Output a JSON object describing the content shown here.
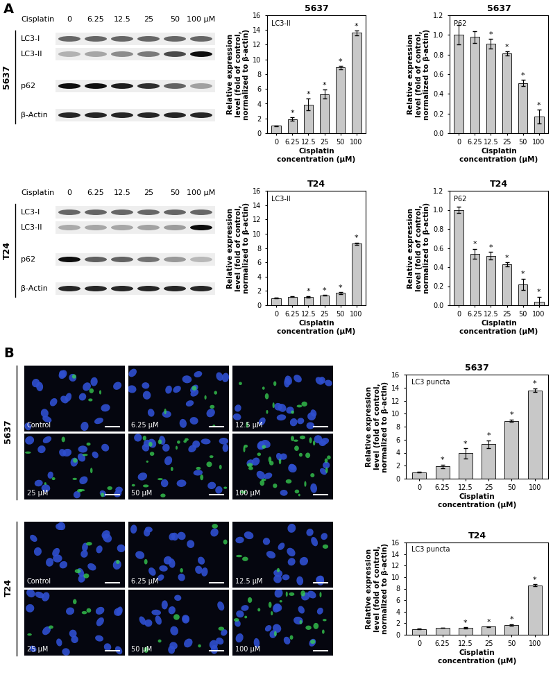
{
  "panel_labels": [
    "A",
    "B"
  ],
  "blots": [
    {
      "cell_line": "5637",
      "treatment": "Cisplatin",
      "lanes": [
        "0",
        "6.25",
        "12.5",
        "25",
        "50",
        "100 μM"
      ],
      "rows": [
        "LC3-I",
        "LC3-II",
        "p62",
        "β-Actin"
      ]
    },
    {
      "cell_line": "T24",
      "treatment": "Cisplatin",
      "lanes": [
        "0",
        "6.25",
        "12.5",
        "25",
        "50",
        "100 μM"
      ],
      "rows": [
        "LC3-I",
        "LC3-II",
        "p62",
        "β-Actin"
      ]
    }
  ],
  "micrographs": [
    {
      "cell_line": "5637",
      "labels": [
        "Control",
        "6.25 μM",
        "12.5 μM",
        "25 μM",
        "50 μM",
        "100 μM"
      ]
    },
    {
      "cell_line": "T24",
      "labels": [
        "Control",
        "6.25 μM",
        "12.5 μM",
        "25 μM",
        "50 μM",
        "100 μM"
      ]
    }
  ],
  "chart_data": [
    {
      "type": "bar",
      "title": "5637",
      "annotation": "LC3-II",
      "categories": [
        "0",
        "6.25",
        "12.5",
        "25",
        "50",
        "100"
      ],
      "values": [
        1.0,
        1.9,
        3.9,
        5.3,
        8.9,
        13.6
      ],
      "errors": [
        0.05,
        0.25,
        0.8,
        0.6,
        0.2,
        0.3
      ],
      "significance": [
        null,
        "*",
        "*",
        "*",
        "*",
        "*"
      ],
      "xlabel": "Cisplatin\nconcentration (μM)",
      "ylabel": "Relative expression\nlevel (fold of control,\nnormalized to β-actin)",
      "ylim": [
        0,
        16
      ],
      "yticks": [
        0,
        2,
        4,
        6,
        8,
        10,
        12,
        14,
        16
      ],
      "color": "#c8c8c8"
    },
    {
      "type": "bar",
      "title": "5637",
      "annotation": "P62",
      "categories": [
        "0",
        "6.25",
        "12.5",
        "25",
        "50",
        "100"
      ],
      "values": [
        1.0,
        0.98,
        0.91,
        0.81,
        0.51,
        0.17
      ],
      "errors": [
        0.1,
        0.06,
        0.05,
        0.02,
        0.03,
        0.07
      ],
      "significance": [
        null,
        null,
        "*",
        "*",
        "*",
        "*"
      ],
      "xlabel": "Cisplatin\nconcentration (μM)",
      "ylabel": "Relative expression\nlevel (fold of control,\nnormalized to β-actin)",
      "ylim": [
        0.0,
        1.2
      ],
      "yticks": [
        0.0,
        0.2,
        0.4,
        0.6,
        0.8,
        1.0,
        1.2
      ],
      "color": "#c8c8c8"
    },
    {
      "type": "bar",
      "title": "T24",
      "annotation": "LC3-II",
      "categories": [
        "0",
        "6.25",
        "12.5",
        "25",
        "50",
        "100"
      ],
      "values": [
        1.0,
        1.2,
        1.2,
        1.4,
        1.7,
        8.6
      ],
      "errors": [
        0.05,
        0.05,
        0.1,
        0.05,
        0.15,
        0.15
      ],
      "significance": [
        null,
        null,
        "*",
        "*",
        "*",
        "*"
      ],
      "xlabel": "Cisplatin\nconcentration (μM)",
      "ylabel": "Relative expression\nlevel (fold of control,\nnormalized to β-actin)",
      "ylim": [
        0,
        16
      ],
      "yticks": [
        0,
        2,
        4,
        6,
        8,
        10,
        12,
        14,
        16
      ],
      "color": "#c8c8c8"
    },
    {
      "type": "bar",
      "title": "T24",
      "annotation": "P62",
      "categories": [
        "0",
        "6.25",
        "12.5",
        "25",
        "50",
        "100"
      ],
      "values": [
        1.0,
        0.54,
        0.52,
        0.43,
        0.22,
        0.04
      ],
      "errors": [
        0.03,
        0.05,
        0.04,
        0.02,
        0.06,
        0.05
      ],
      "significance": [
        null,
        "*",
        "*",
        "*",
        "*",
        "*"
      ],
      "xlabel": "Cisplatin\nconcentration (μM)",
      "ylabel": "Relative expression\nlevel (fold of control,\nnormalized to β-actin)",
      "ylim": [
        0.0,
        1.2
      ],
      "yticks": [
        0.0,
        0.2,
        0.4,
        0.6,
        0.8,
        1.0,
        1.2
      ],
      "color": "#c8c8c8"
    },
    {
      "type": "bar",
      "title": "5637",
      "annotation": "LC3 puncta",
      "categories": [
        "0",
        "6.25",
        "12.5",
        "25",
        "50",
        "100"
      ],
      "values": [
        1.0,
        1.9,
        3.9,
        5.3,
        8.9,
        13.6
      ],
      "errors": [
        0.05,
        0.25,
        0.8,
        0.6,
        0.2,
        0.3
      ],
      "significance": [
        null,
        "*",
        "*",
        "*",
        "*",
        "*"
      ],
      "xlabel": "Cisplatin\nconcentration (μM)",
      "ylabel": "Relative expression\nlevel (fold of control,\nnormalized to β-actin)",
      "ylim": [
        0,
        16
      ],
      "yticks": [
        0,
        2,
        4,
        6,
        8,
        10,
        12,
        14,
        16
      ],
      "color": "#c8c8c8"
    },
    {
      "type": "bar",
      "title": "T24",
      "annotation": "LC3 puncta",
      "categories": [
        "0",
        "6.25",
        "12.5",
        "25",
        "50",
        "100"
      ],
      "values": [
        1.0,
        1.2,
        1.2,
        1.4,
        1.7,
        8.6
      ],
      "errors": [
        0.05,
        0.05,
        0.1,
        0.05,
        0.15,
        0.15
      ],
      "significance": [
        null,
        null,
        "*",
        "*",
        "*",
        "*"
      ],
      "xlabel": "Cisplatin\nconcentration (μM)",
      "ylabel": "Relative expression\nlevel (fold of control,\nnormalized to β-actin)",
      "ylim": [
        0,
        16
      ],
      "yticks": [
        0,
        2,
        4,
        6,
        8,
        10,
        12,
        14,
        16
      ],
      "color": "#c8c8c8"
    }
  ]
}
